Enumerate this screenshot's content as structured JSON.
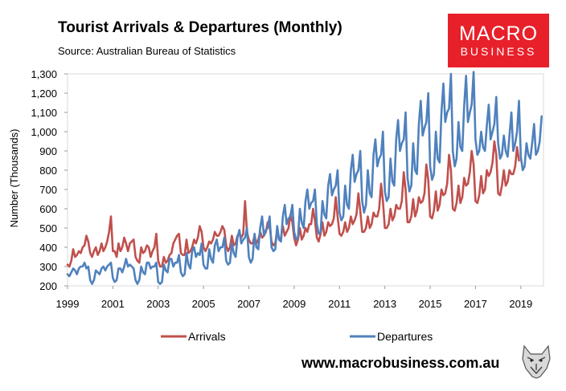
{
  "header": {
    "title": "Tourist Arrivals & Departures (Monthly)",
    "source": "Source: Australian Bureau of Statistics"
  },
  "logo": {
    "line1": "MACRO",
    "line2": "BUSINESS",
    "color": "#e8202a"
  },
  "footer": {
    "website": "www.macrobusiness.com.au",
    "icon": "wolf-icon"
  },
  "chart_data": {
    "type": "line",
    "ylabel": "Number (Thousands)",
    "xlabel": "",
    "ylim": [
      200,
      1300
    ],
    "xlim": [
      1999,
      2020
    ],
    "yticks": [
      200,
      300,
      400,
      500,
      600,
      700,
      800,
      900,
      1000,
      1100,
      1200,
      1300
    ],
    "ytick_labels": [
      "200",
      "300",
      "400",
      "500",
      "600",
      "700",
      "800",
      "900",
      "1,000",
      "1,100",
      "1,200",
      "1,300"
    ],
    "xticks": [
      1999,
      2001,
      2003,
      2005,
      2007,
      2009,
      2011,
      2013,
      2015,
      2017,
      2019
    ],
    "xtick_labels": [
      "1999",
      "2001",
      "2003",
      "2005",
      "2007",
      "2009",
      "2011",
      "2013",
      "2015",
      "2017",
      "2019"
    ],
    "grid": false,
    "legend_position": "bottom",
    "start": "1999-01",
    "frequency": "monthly",
    "series": [
      {
        "name": "Arrivals",
        "color": "#c0504d",
        "values": [
          310,
          300,
          330,
          390,
          350,
          360,
          380,
          370,
          400,
          410,
          460,
          430,
          370,
          350,
          380,
          400,
          360,
          380,
          420,
          380,
          400,
          430,
          480,
          560,
          380,
          380,
          350,
          420,
          380,
          400,
          450,
          420,
          380,
          420,
          430,
          440,
          350,
          330,
          320,
          400,
          370,
          380,
          410,
          400,
          350,
          380,
          400,
          470,
          330,
          300,
          300,
          350,
          320,
          330,
          360,
          370,
          420,
          440,
          460,
          470,
          370,
          360,
          360,
          440,
          370,
          380,
          400,
          440,
          420,
          450,
          510,
          480,
          400,
          380,
          400,
          430,
          420,
          440,
          480,
          460,
          460,
          480,
          510,
          490,
          410,
          380,
          400,
          460,
          410,
          420,
          460,
          470,
          450,
          470,
          640,
          480,
          440,
          420,
          420,
          460,
          420,
          440,
          480,
          450,
          460,
          480,
          530,
          510,
          430,
          410,
          420,
          490,
          440,
          450,
          510,
          460,
          480,
          500,
          570,
          530,
          450,
          410,
          440,
          500,
          440,
          460,
          500,
          480,
          520,
          520,
          600,
          540,
          450,
          430,
          470,
          530,
          460,
          480,
          530,
          510,
          520,
          550,
          660,
          560,
          470,
          460,
          480,
          530,
          480,
          500,
          560,
          520,
          540,
          570,
          680,
          590,
          480,
          480,
          500,
          560,
          500,
          520,
          580,
          560,
          560,
          600,
          730,
          640,
          500,
          500,
          520,
          600,
          540,
          560,
          620,
          600,
          600,
          640,
          790,
          700,
          530,
          530,
          560,
          650,
          560,
          590,
          660,
          630,
          640,
          680,
          830,
          750,
          560,
          550,
          590,
          690,
          590,
          620,
          700,
          670,
          680,
          730,
          880,
          800,
          600,
          590,
          630,
          720,
          630,
          660,
          760,
          720,
          730,
          790,
          900,
          830,
          640,
          630,
          670,
          770,
          680,
          700,
          800,
          770,
          790,
          840,
          950,
          880,
          680,
          670,
          720,
          800,
          720,
          740,
          800,
          780,
          780,
          820,
          920,
          850
        ]
      },
      {
        "name": "Departures",
        "color": "#4f81bd",
        "values": [
          260,
          250,
          270,
          290,
          280,
          260,
          290,
          300,
          300,
          320,
          290,
          300,
          230,
          210,
          230,
          280,
          270,
          260,
          290,
          300,
          280,
          300,
          310,
          320,
          240,
          220,
          230,
          290,
          290,
          270,
          300,
          340,
          300,
          310,
          300,
          290,
          230,
          210,
          230,
          300,
          270,
          260,
          320,
          320,
          290,
          300,
          300,
          320,
          220,
          210,
          220,
          310,
          280,
          270,
          340,
          340,
          300,
          320,
          320,
          360,
          270,
          250,
          260,
          370,
          310,
          290,
          380,
          400,
          350,
          370,
          360,
          420,
          310,
          290,
          290,
          390,
          340,
          320,
          410,
          440,
          380,
          400,
          400,
          450,
          330,
          310,
          320,
          420,
          370,
          350,
          450,
          490,
          420,
          440,
          450,
          500,
          350,
          320,
          340,
          470,
          400,
          390,
          500,
          560,
          460,
          490,
          500,
          560,
          400,
          380,
          390,
          510,
          440,
          430,
          560,
          620,
          520,
          550,
          560,
          620,
          480,
          440,
          450,
          600,
          530,
          500,
          640,
          700,
          600,
          630,
          640,
          700,
          520,
          470,
          480,
          640,
          570,
          550,
          720,
          780,
          670,
          700,
          720,
          800,
          580,
          540,
          560,
          720,
          620,
          600,
          800,
          880,
          740,
          780,
          800,
          900,
          640,
          580,
          620,
          800,
          680,
          660,
          880,
          960,
          820,
          860,
          880,
          1000,
          690,
          640,
          660,
          860,
          740,
          720,
          960,
          1060,
          900,
          940,
          960,
          1100,
          760,
          690,
          720,
          940,
          800,
          780,
          1040,
          1160,
          980,
          1020,
          1050,
          1200,
          820,
          750,
          780,
          1000,
          860,
          840,
          1100,
          1250,
          1050,
          1100,
          1120,
          1300,
          900,
          820,
          860,
          1050,
          920,
          900,
          1130,
          1290,
          1050,
          1100,
          1140,
          1310,
          960,
          880,
          900,
          1000,
          920,
          900,
          1030,
          1140,
          960,
          1000,
          1040,
          1180,
          940,
          860,
          880,
          980,
          900,
          870,
          980,
          1100,
          900,
          940,
          1000,
          1160,
          870,
          800,
          820,
          940,
          880,
          860,
          940,
          1040,
          880,
          900,
          950,
          1080
        ]
      }
    ]
  }
}
